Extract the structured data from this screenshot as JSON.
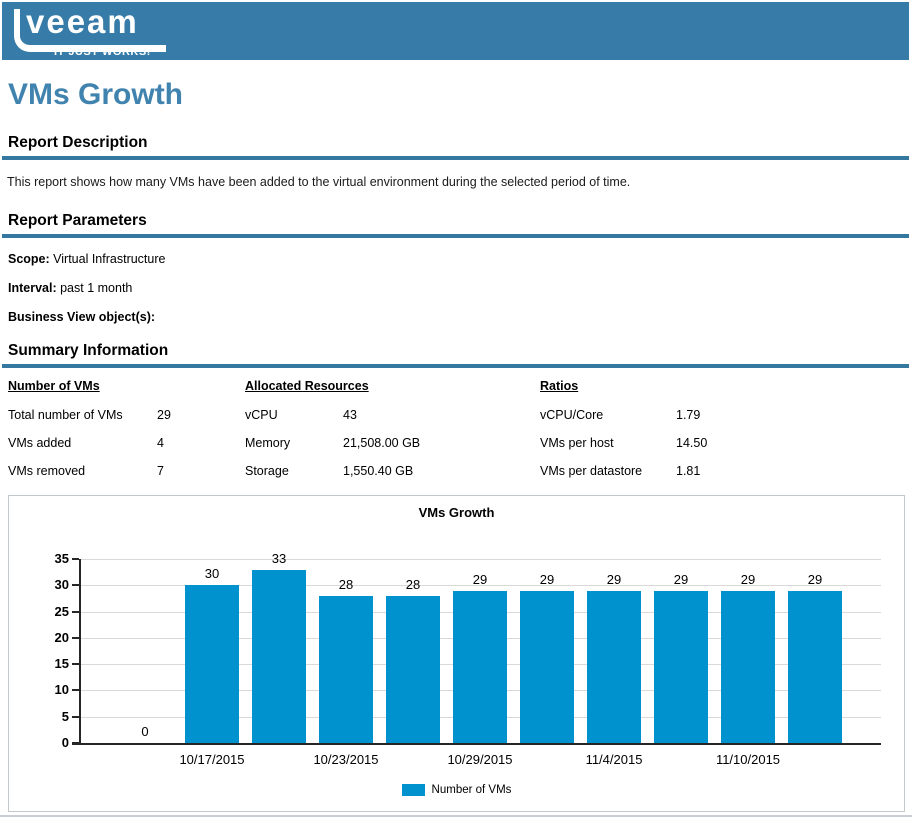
{
  "header": {
    "logo_text": "veeam",
    "tagline": "IT JUST WORKS!™"
  },
  "page": {
    "title": "VMs Growth"
  },
  "sections": {
    "description": {
      "heading": "Report Description",
      "text": "This report shows how many VMs have been added to the virtual environment during the selected period of time."
    },
    "parameters": {
      "heading": "Report Parameters",
      "items": [
        {
          "label": "Scope:",
          "value": "Virtual Infrastructure"
        },
        {
          "label": "Interval:",
          "value": "past 1 month"
        },
        {
          "label": "Business View object(s):",
          "value": ""
        }
      ]
    },
    "summary": {
      "heading": "Summary Information",
      "columns": [
        {
          "header": "Number of VMs",
          "rows": [
            {
              "label": "Total number of VMs",
              "value": "29"
            },
            {
              "label": "VMs added",
              "value": "4"
            },
            {
              "label": "VMs removed",
              "value": "7"
            }
          ]
        },
        {
          "header": "Allocated Resources",
          "rows": [
            {
              "label": "vCPU",
              "value": "43"
            },
            {
              "label": "Memory",
              "value": "21,508.00 GB"
            },
            {
              "label": "Storage",
              "value": "1,550.40 GB"
            }
          ]
        },
        {
          "header": "Ratios",
          "rows": [
            {
              "label": "vCPU/Core",
              "value": "1.79"
            },
            {
              "label": "VMs per host",
              "value": "14.50"
            },
            {
              "label": "VMs per datastore",
              "value": "1.81"
            }
          ]
        }
      ]
    }
  },
  "chart_data": {
    "type": "bar",
    "title": "VMs Growth",
    "values": [
      0,
      30,
      33,
      28,
      28,
      29,
      29,
      29,
      29,
      29,
      29
    ],
    "bar_labels": [
      "0",
      "30",
      "33",
      "28",
      "28",
      "29",
      "29",
      "29",
      "29",
      "29",
      "29"
    ],
    "x_tick_labels": [
      {
        "index": 1,
        "label": "10/17/2015"
      },
      {
        "index": 3,
        "label": "10/23/2015"
      },
      {
        "index": 5,
        "label": "10/29/2015"
      },
      {
        "index": 7,
        "label": "11/4/2015"
      },
      {
        "index": 9,
        "label": "11/10/2015"
      }
    ],
    "y_ticks": [
      0,
      5,
      10,
      15,
      20,
      25,
      30,
      35
    ],
    "ylim": [
      0,
      35
    ],
    "grid": true,
    "legend_position": "bottom",
    "legend": [
      {
        "label": "Number of VMs",
        "color": "#0091CF"
      }
    ],
    "bar_color": "#0091CF"
  },
  "colors": {
    "header_blue": "#377CA8",
    "title_blue": "#4183AF",
    "rule_blue": "#35789F",
    "bar_blue": "#0091CF",
    "gridline": "#D9D9D9",
    "axis": "#262626",
    "chart_border": "#C3C8CC"
  }
}
